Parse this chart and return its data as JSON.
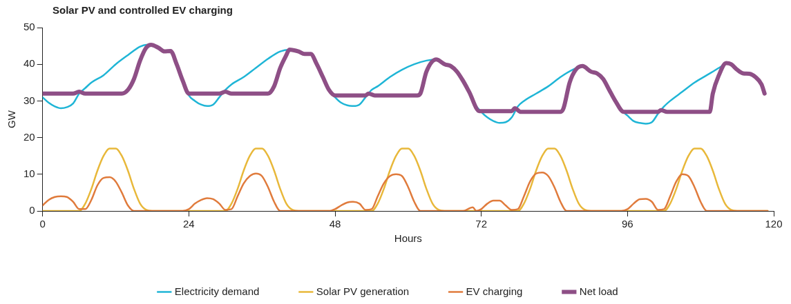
{
  "chart_data": {
    "type": "line",
    "title": "Solar PV and controlled EV charging",
    "xlabel": "Hours",
    "ylabel": "GW",
    "xlim": [
      0,
      120
    ],
    "xticks": [
      0,
      24,
      48,
      72,
      96,
      120
    ],
    "ylim": [
      0,
      50
    ],
    "yticks": [
      0,
      10,
      20,
      30,
      40,
      50
    ],
    "grid": false,
    "legend": "bottom",
    "marker": "none",
    "line_style": "solid",
    "series": [
      {
        "name": "Electricity demand",
        "color": "#1fb5d6",
        "x": [
          0,
          1,
          2,
          3,
          4,
          5,
          6,
          7,
          8,
          10,
          12,
          14,
          16,
          17,
          18,
          19,
          20,
          21,
          22,
          23,
          24,
          25,
          26,
          27,
          28,
          29,
          30,
          31,
          33,
          35,
          37,
          39,
          40.5,
          41,
          42,
          43,
          44,
          45,
          46,
          47,
          48,
          49,
          50,
          51,
          52,
          53,
          54,
          55,
          57,
          59,
          61,
          63,
          64.6,
          66,
          67,
          68,
          69,
          70,
          71,
          72,
          73,
          74,
          75,
          76,
          77,
          78,
          79,
          81,
          83,
          85,
          87,
          88.6,
          90,
          91,
          92,
          93,
          94,
          95,
          96,
          97,
          98,
          99,
          100,
          101,
          102,
          103,
          105,
          107,
          109,
          111,
          112.2
        ],
        "values": [
          31,
          29.5,
          28.5,
          28,
          28.3,
          29.3,
          32,
          33.5,
          35,
          37,
          40,
          42.5,
          44.8,
          45.3,
          45.3,
          44.8,
          43.5,
          43.6,
          40,
          35.5,
          31.5,
          30,
          29,
          28.6,
          29,
          31,
          33,
          34.5,
          36.5,
          39,
          41.5,
          43.5,
          44,
          44,
          43.5,
          42.8,
          42.8,
          40,
          36.5,
          33,
          31,
          29.5,
          28.8,
          28.6,
          29,
          31,
          33,
          34,
          36.5,
          38.5,
          40,
          41,
          41.3,
          40,
          39.5,
          38,
          35.5,
          32.5,
          29,
          27,
          25.5,
          24.5,
          24,
          24.2,
          25.5,
          28.5,
          30,
          32,
          34,
          36.5,
          38.5,
          39.5,
          38,
          37.5,
          36,
          33,
          30,
          27.5,
          26,
          24.5,
          24,
          23.8,
          24.2,
          26.5,
          28.5,
          30,
          32.5,
          35,
          37,
          39,
          40.3
        ]
      },
      {
        "name": "Solar PV generation",
        "color": "#e8b83a",
        "x": [
          0,
          6,
          7,
          8,
          9,
          10,
          11,
          12,
          13,
          14,
          15,
          16,
          17,
          18,
          30,
          31,
          32,
          33,
          34,
          35,
          36,
          37,
          38,
          39,
          40,
          41,
          42,
          54,
          55,
          56,
          57,
          58,
          59,
          60,
          61,
          62,
          63,
          64,
          65,
          66,
          78,
          79,
          80,
          81,
          82,
          83,
          84,
          85,
          86,
          87,
          88,
          89,
          90,
          102,
          103,
          104,
          105,
          106,
          107,
          108,
          109,
          110,
          111,
          112,
          113,
          114,
          119
        ],
        "values": [
          0,
          0,
          2,
          6,
          11,
          15,
          17,
          17,
          15,
          11,
          6,
          2,
          0.3,
          0,
          0,
          2,
          6,
          11,
          15,
          17,
          17,
          15,
          11,
          6,
          2,
          0.3,
          0,
          0,
          2,
          6,
          11,
          15,
          17,
          17,
          15,
          11,
          6,
          2,
          0.3,
          0,
          0,
          2,
          6,
          11,
          15,
          17,
          17,
          15,
          11,
          6,
          2,
          0.3,
          0,
          0,
          2,
          6,
          11,
          15,
          17,
          17,
          15,
          11,
          6,
          2,
          0.3,
          0,
          0
        ]
      },
      {
        "name": "EV charging",
        "color": "#e07b3c",
        "x": [
          0,
          1,
          2,
          3,
          4,
          5,
          6,
          7,
          8,
          9,
          10,
          11,
          12,
          13,
          14,
          15,
          23,
          24,
          25,
          26,
          27,
          28,
          29,
          30,
          31,
          32,
          33,
          34,
          35,
          36,
          37,
          38,
          39,
          47,
          48,
          49,
          50,
          51,
          52,
          53,
          54,
          55,
          56,
          57,
          58,
          59,
          60,
          61,
          62,
          69,
          70.6,
          71.2,
          72,
          73,
          74,
          75,
          76,
          77,
          78,
          79,
          80,
          81,
          82,
          83,
          84,
          85,
          86,
          95,
          96,
          97,
          98,
          99,
          100,
          101,
          102,
          103,
          104,
          105,
          106,
          107,
          108,
          109,
          119
        ],
        "values": [
          1.5,
          3,
          3.8,
          4,
          3.8,
          2.5,
          0.5,
          0.5,
          3,
          7,
          9,
          9.2,
          8,
          5,
          1.5,
          0,
          0,
          0.5,
          2,
          3,
          3.5,
          3.2,
          2,
          0.3,
          0.5,
          4,
          7.5,
          9.5,
          10.2,
          9.5,
          6.5,
          2.5,
          0,
          0,
          0.5,
          1.5,
          2.3,
          2.5,
          2,
          0.3,
          0.5,
          4,
          7.5,
          9.5,
          10,
          9.5,
          6.5,
          2.5,
          0,
          0,
          1,
          0,
          0.5,
          2,
          2.8,
          2.8,
          1.5,
          0.3,
          0.5,
          4,
          8,
          10.2,
          10.5,
          9.5,
          6.5,
          2.5,
          0,
          0,
          0.5,
          2,
          3.2,
          3.3,
          2.5,
          0.3,
          0.5,
          4,
          8,
          10,
          9.5,
          6.5,
          2.5,
          0,
          0
        ]
      },
      {
        "name": "Net load",
        "color": "#8e4f86",
        "x": [
          0,
          5,
          6,
          7,
          13,
          14,
          15,
          16,
          17,
          17.8,
          19,
          20,
          21,
          22,
          23,
          24,
          29,
          30,
          31,
          37,
          38,
          39,
          40,
          40.5,
          42,
          43,
          44,
          45,
          46,
          47,
          48,
          53,
          53.5,
          54.5,
          61.5,
          62,
          63,
          64.6,
          66,
          67,
          68,
          69,
          70,
          71.7,
          77,
          77.5,
          78.5,
          85,
          85.5,
          86.5,
          87.5,
          88.6,
          90,
          91,
          92,
          93,
          94,
          95.4,
          101,
          101.5,
          102.5,
          109.5,
          110,
          111,
          112.2,
          113,
          114,
          115,
          116,
          117,
          118,
          118.5
        ],
        "values": [
          32,
          32,
          32.5,
          32,
          32,
          33,
          36,
          41,
          44.5,
          45.3,
          44.5,
          43.5,
          43.6,
          40,
          35.5,
          32,
          32,
          32.5,
          32,
          32,
          34,
          39,
          42.5,
          44,
          43.5,
          42.8,
          42.8,
          40,
          36.5,
          33,
          31.5,
          31.5,
          32,
          31.5,
          31.5,
          32,
          38,
          41.3,
          40,
          39.5,
          38,
          35.5,
          32.5,
          27.2,
          27.2,
          28,
          27,
          27,
          28,
          35,
          38.5,
          39.5,
          38,
          37.5,
          36,
          33,
          30,
          27,
          27,
          27.5,
          27,
          27,
          32,
          37,
          40.3,
          40,
          38.5,
          37.5,
          37.4,
          36.5,
          34.5,
          32
        ]
      }
    ]
  }
}
